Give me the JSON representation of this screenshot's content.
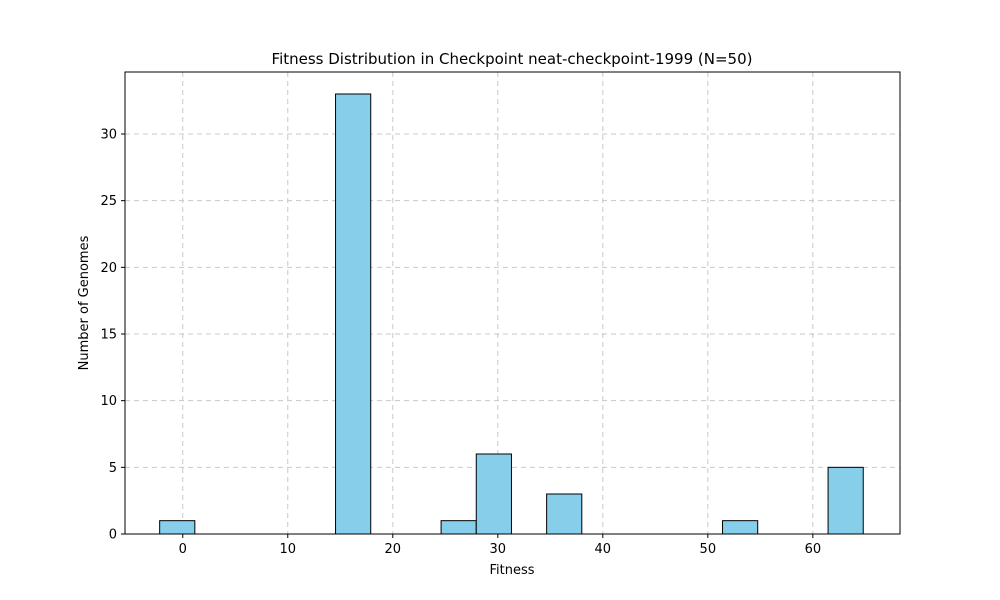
{
  "chart_data": {
    "type": "bar",
    "title": "Fitness Distribution in Checkpoint neat-checkpoint-1999 (N=50)",
    "xlabel": "Fitness",
    "ylabel": "Number of Genomes",
    "xlim": [
      -5.5,
      68.3
    ],
    "ylim": [
      0,
      34.65
    ],
    "xticks": [
      0,
      10,
      20,
      30,
      40,
      50,
      60
    ],
    "yticks": [
      0,
      5,
      10,
      15,
      20,
      25,
      30
    ],
    "grid": true,
    "bins": [
      {
        "start": -2.2,
        "end": 1.15,
        "count": 1
      },
      {
        "start": 1.15,
        "end": 4.5,
        "count": 0
      },
      {
        "start": 4.5,
        "end": 7.85,
        "count": 0
      },
      {
        "start": 7.85,
        "end": 11.2,
        "count": 0
      },
      {
        "start": 11.2,
        "end": 14.55,
        "count": 0
      },
      {
        "start": 14.55,
        "end": 17.9,
        "count": 33
      },
      {
        "start": 17.9,
        "end": 21.25,
        "count": 0
      },
      {
        "start": 21.25,
        "end": 24.6,
        "count": 0
      },
      {
        "start": 24.6,
        "end": 27.95,
        "count": 1
      },
      {
        "start": 27.95,
        "end": 31.3,
        "count": 6
      },
      {
        "start": 31.3,
        "end": 34.65,
        "count": 0
      },
      {
        "start": 34.65,
        "end": 38.0,
        "count": 3
      },
      {
        "start": 38.0,
        "end": 41.35,
        "count": 0
      },
      {
        "start": 41.35,
        "end": 44.7,
        "count": 0
      },
      {
        "start": 44.7,
        "end": 48.05,
        "count": 0
      },
      {
        "start": 48.05,
        "end": 51.4,
        "count": 0
      },
      {
        "start": 51.4,
        "end": 54.75,
        "count": 1
      },
      {
        "start": 54.75,
        "end": 58.1,
        "count": 0
      },
      {
        "start": 58.1,
        "end": 61.45,
        "count": 0
      },
      {
        "start": 61.45,
        "end": 64.8,
        "count": 5
      }
    ],
    "colors": {
      "bar_fill": "#87ceeb",
      "bar_edge": "#000000",
      "grid": "#c8c8c8"
    }
  }
}
